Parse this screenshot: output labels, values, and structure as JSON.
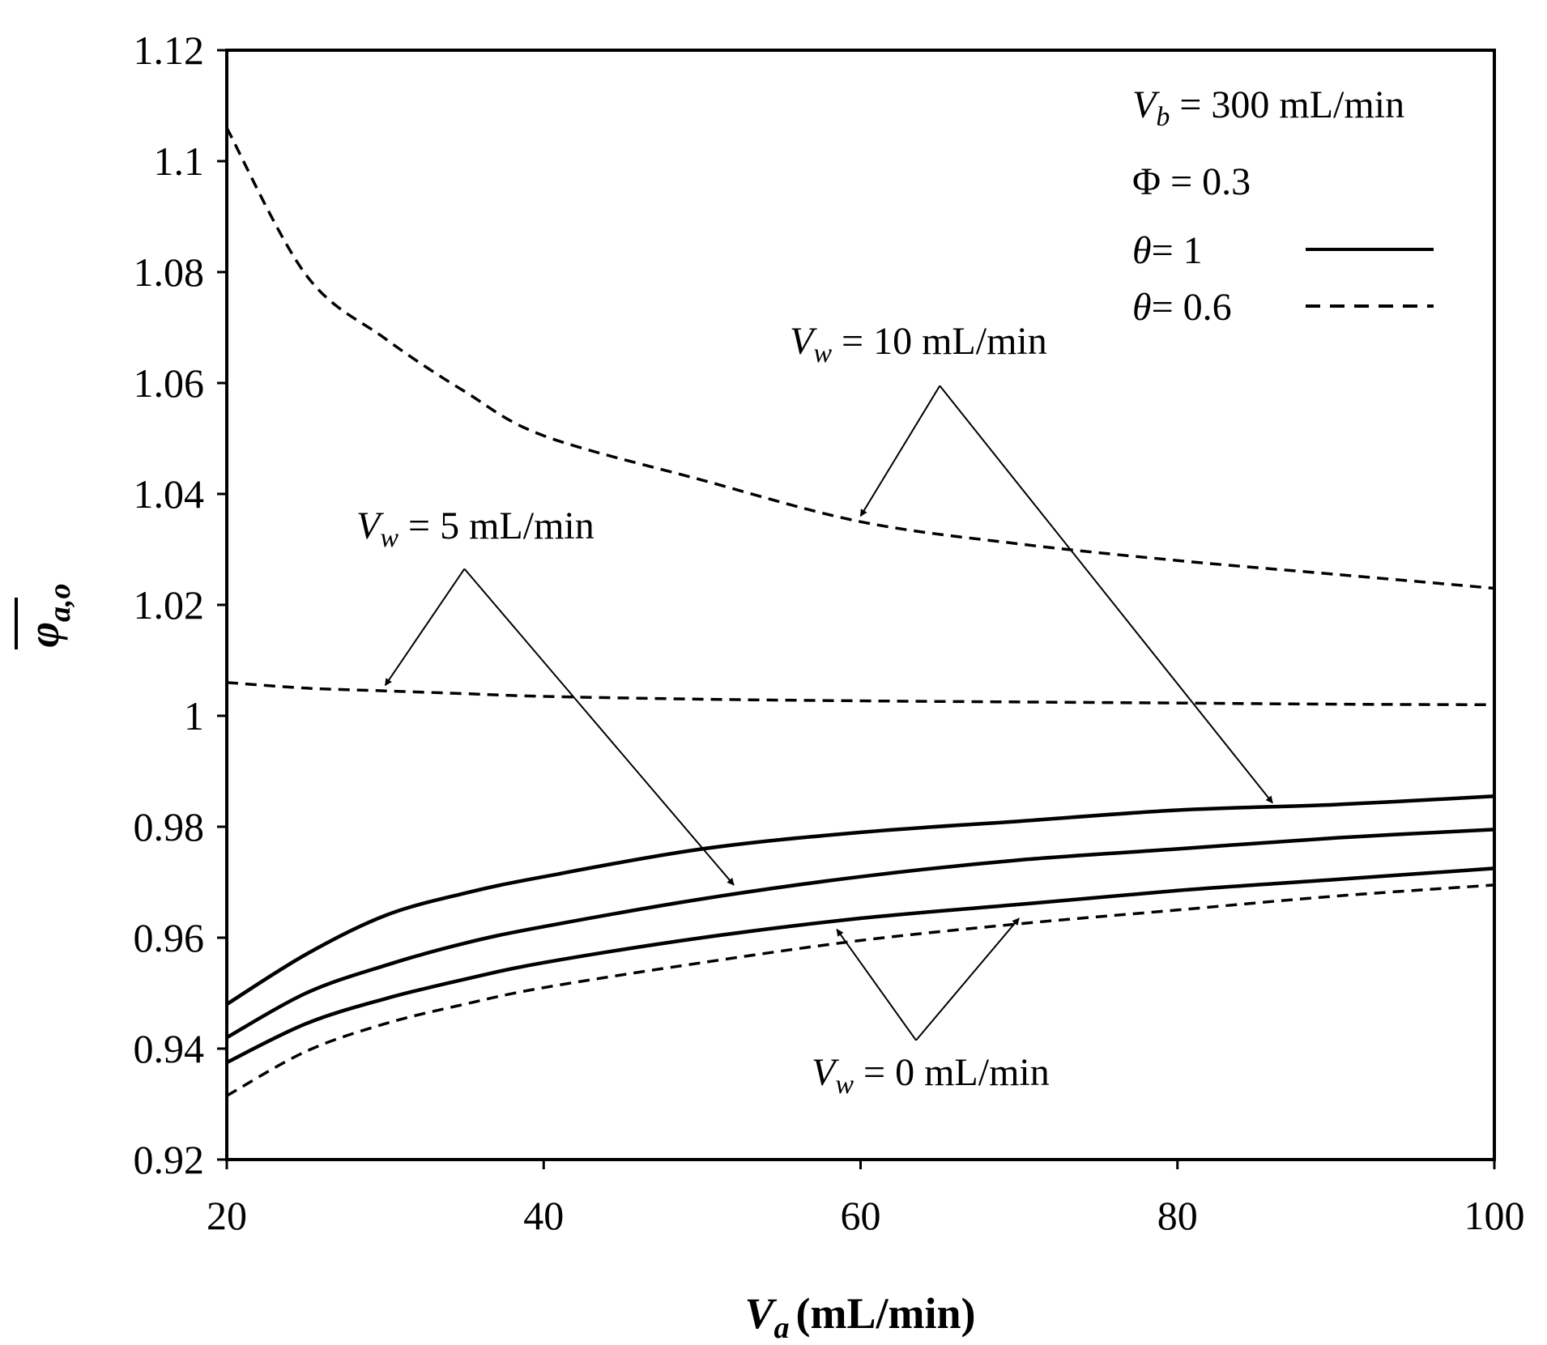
{
  "chart_data": {
    "type": "line",
    "title": "",
    "xlabel": "(mL/min)",
    "xlabel_symbol": "V",
    "xlabel_subscript": "a",
    "ylabel_symbol": "φ",
    "ylabel_subscript": "a,o",
    "xlim": [
      20,
      100
    ],
    "ylim": [
      0.92,
      1.12
    ],
    "x_ticks": [
      20,
      40,
      60,
      80,
      100
    ],
    "x_tick_labels": [
      "20",
      "40",
      "60",
      "80",
      "100"
    ],
    "y_ticks": [
      0.92,
      0.94,
      0.96,
      0.98,
      1.0,
      1.02,
      1.04,
      1.06,
      1.08,
      1.1,
      1.12
    ],
    "y_tick_labels": [
      "0.92",
      "0.94",
      "0.96",
      "0.98",
      "1",
      "1.02",
      "1.04",
      "1.06",
      "1.08",
      "1.1",
      "1.12"
    ],
    "grid": false,
    "x": [
      20,
      25,
      30,
      35,
      40,
      50,
      60,
      70,
      80,
      90,
      100
    ],
    "series": [
      {
        "name": "θ=1, Vw=10 mL/min",
        "style": "solid",
        "values": [
          0.948,
          0.957,
          0.964,
          0.968,
          0.971,
          0.976,
          0.979,
          0.981,
          0.983,
          0.984,
          0.9855
        ]
      },
      {
        "name": "θ=1, Vw=5 mL/min",
        "style": "solid",
        "values": [
          0.942,
          0.95,
          0.955,
          0.959,
          0.962,
          0.967,
          0.971,
          0.974,
          0.976,
          0.978,
          0.9795
        ]
      },
      {
        "name": "θ=1, Vw=0 mL/min",
        "style": "solid",
        "values": [
          0.9375,
          0.9445,
          0.949,
          0.9525,
          0.9555,
          0.96,
          0.9635,
          0.966,
          0.9685,
          0.9705,
          0.9725
        ]
      },
      {
        "name": "θ=0.6, Vw=0 mL/min",
        "style": "dashed",
        "values": [
          0.9315,
          0.9395,
          0.9445,
          0.948,
          0.951,
          0.9555,
          0.9595,
          0.9625,
          0.965,
          0.9675,
          0.9695
        ]
      },
      {
        "name": "θ=0.6, Vw=5 mL/min",
        "style": "dashed",
        "values": [
          1.006,
          1.005,
          1.0045,
          1.004,
          1.0035,
          1.003,
          1.0027,
          1.0025,
          1.0023,
          1.0021,
          1.002
        ]
      },
      {
        "name": "θ=0.6, Vw=10 mL/min",
        "style": "dashed",
        "values": [
          1.106,
          1.0795,
          1.068,
          1.0585,
          1.0505,
          1.0425,
          1.035,
          1.031,
          1.028,
          1.0255,
          1.023
        ]
      }
    ],
    "legend": {
      "position": "top-right",
      "vb_symbol": "V",
      "vb_sub": "b",
      "vb_rest": " = 300 mL/min",
      "phi_text": "Φ = 0.3",
      "theta1_symbol": "θ",
      "theta1_rest": "= 1",
      "theta06_symbol": "θ",
      "theta06_rest": "= 0.6"
    },
    "annotations": [
      {
        "id": "vw10",
        "symbol": "V",
        "sub": "w",
        "rest": " = 10 mL/min",
        "arrow_from": {
          "x": 65,
          "y": 1.0595
        },
        "arrow_targets": [
          {
            "x": 60,
            "y": 1.036
          },
          {
            "x": 86,
            "y": 0.9843
          }
        ]
      },
      {
        "id": "vw5",
        "symbol": "V",
        "sub": "w",
        "rest": " = 5 mL/min",
        "arrow_from": {
          "x": 35,
          "y": 1.0265
        },
        "arrow_targets": [
          {
            "x": 30,
            "y": 1.0055
          },
          {
            "x": 52,
            "y": 0.9695
          }
        ]
      },
      {
        "id": "vw0",
        "symbol": "V",
        "sub": "w",
        "rest": " = 0 mL/min",
        "arrow_from": {
          "x": 63.5,
          "y": 0.9415
        },
        "arrow_targets": [
          {
            "x": 58.5,
            "y": 0.9615
          },
          {
            "x": 70,
            "y": 0.9635
          }
        ]
      }
    ]
  }
}
